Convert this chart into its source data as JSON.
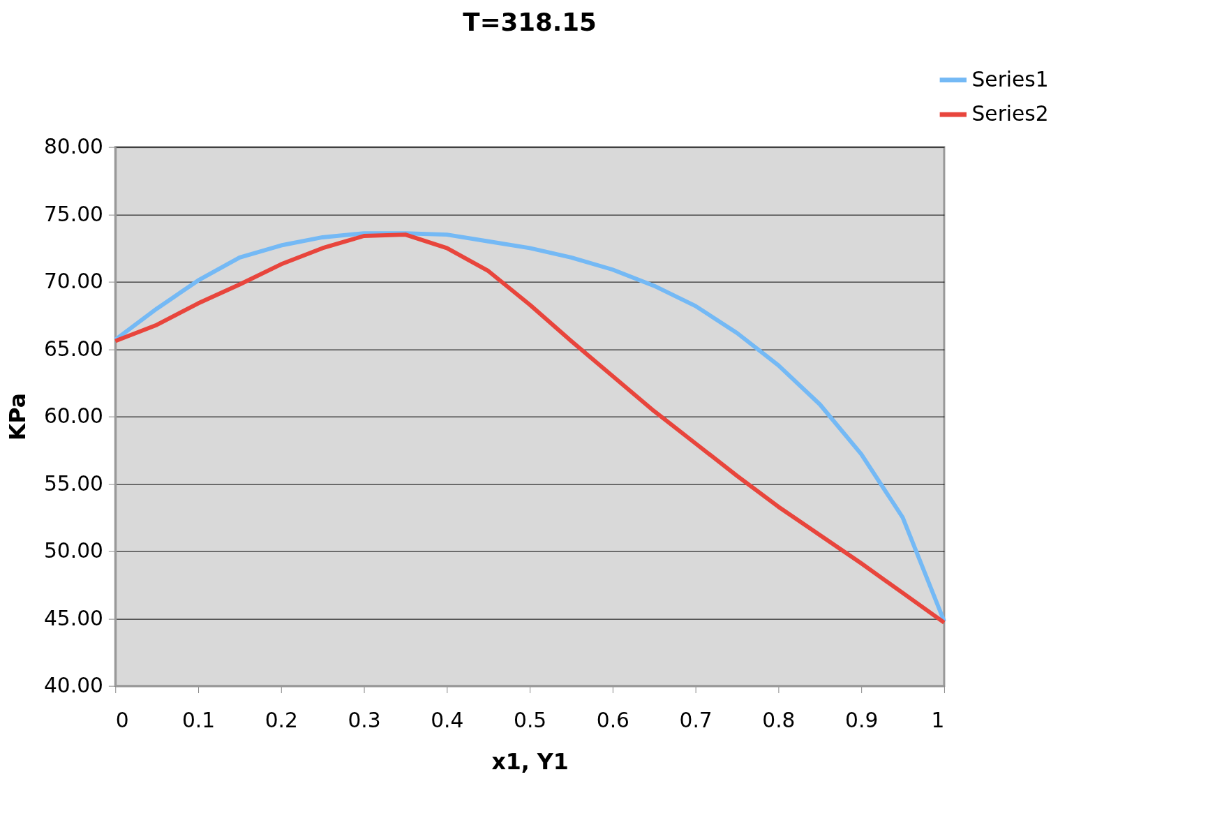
{
  "chart_data": {
    "type": "line",
    "title": "T=318.15",
    "xlabel": "x1, Y1",
    "ylabel": "KPa",
    "x": [
      0,
      0.05,
      0.1,
      0.15,
      0.2,
      0.25,
      0.3,
      0.35,
      0.4,
      0.45,
      0.5,
      0.55,
      0.6,
      0.65,
      0.7,
      0.75,
      0.8,
      0.85,
      0.9,
      0.95,
      1
    ],
    "series": [
      {
        "name": "Series1",
        "color": "#74b9f5",
        "values": [
          65.7,
          68.0,
          70.1,
          71.8,
          72.7,
          73.3,
          73.6,
          73.6,
          73.5,
          73.0,
          72.5,
          71.8,
          70.9,
          69.7,
          68.2,
          66.2,
          63.8,
          60.9,
          57.2,
          52.5,
          44.8
        ]
      },
      {
        "name": "Series2",
        "color": "#e8453c",
        "values": [
          65.6,
          66.8,
          68.4,
          69.8,
          71.3,
          72.5,
          73.4,
          73.5,
          72.5,
          70.8,
          68.3,
          65.6,
          63.0,
          60.4,
          58.0,
          55.6,
          53.3,
          51.2,
          49.1,
          46.9,
          44.7
        ]
      }
    ],
    "xlim": [
      0,
      1
    ],
    "xticks": [
      0,
      0.1,
      0.2,
      0.3,
      0.4,
      0.5,
      0.6,
      0.7,
      0.8,
      0.9,
      1
    ],
    "ylim": [
      40,
      80
    ],
    "yticks": [
      {
        "value": 40,
        "label": "40.00"
      },
      {
        "value": 45,
        "label": "45.00"
      },
      {
        "value": 50,
        "label": "50.00"
      },
      {
        "value": 55,
        "label": "55.00"
      },
      {
        "value": 60,
        "label": "60.00"
      },
      {
        "value": 65,
        "label": "65.00"
      },
      {
        "value": 70,
        "label": "70.00"
      },
      {
        "value": 75,
        "label": "75.00"
      },
      {
        "value": 80,
        "label": "80.00"
      }
    ],
    "grid": "y",
    "legend": "top right",
    "marker": "none",
    "line_style": "solid"
  }
}
